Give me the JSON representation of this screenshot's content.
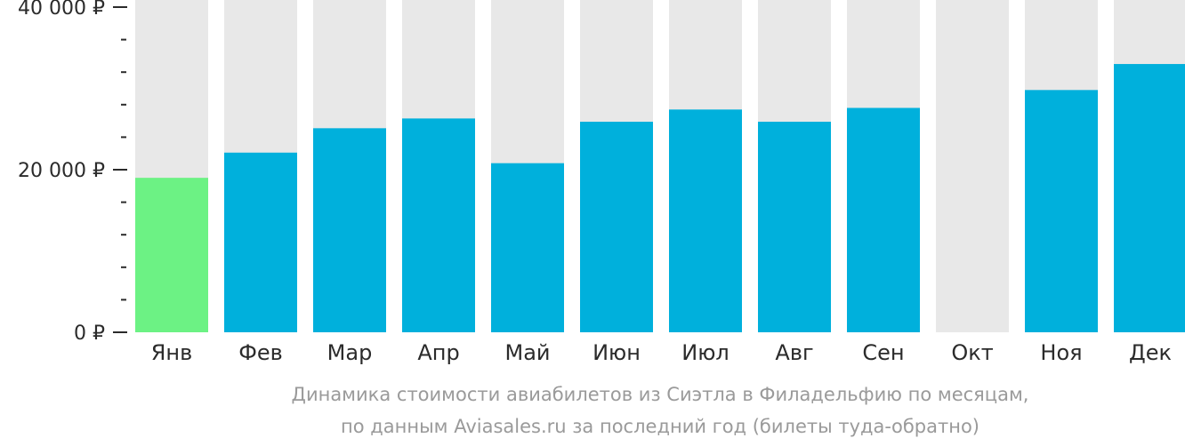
{
  "chart_data": {
    "type": "bar",
    "categories": [
      "Янв",
      "Фев",
      "Мар",
      "Апр",
      "Май",
      "Июн",
      "Июл",
      "Авг",
      "Сен",
      "Окт",
      "Ноя",
      "Дек"
    ],
    "values": [
      19000,
      22100,
      25100,
      26300,
      20800,
      25900,
      27400,
      25900,
      27600,
      null,
      29800,
      33000
    ],
    "ylim": [
      0,
      40000
    ],
    "yticks": [
      {
        "value": 0,
        "label": "0 ₽"
      },
      {
        "value": 20000,
        "label": "20 000 ₽"
      },
      {
        "value": 40000,
        "label": "40 000 ₽"
      }
    ],
    "minor_tick_step": 4000,
    "highlight_index": 0,
    "colors": {
      "bar": "#00b0dc",
      "highlight": "#6cf284",
      "background_bar": "#e8e8e8",
      "axis": "#2b2b2b"
    },
    "caption": [
      "Динамика стоимости авиабилетов из Сиэтла в Филадельфию по месяцам,",
      "по данным Aviasales.ru за последний год (билеты туда-обратно)"
    ]
  }
}
